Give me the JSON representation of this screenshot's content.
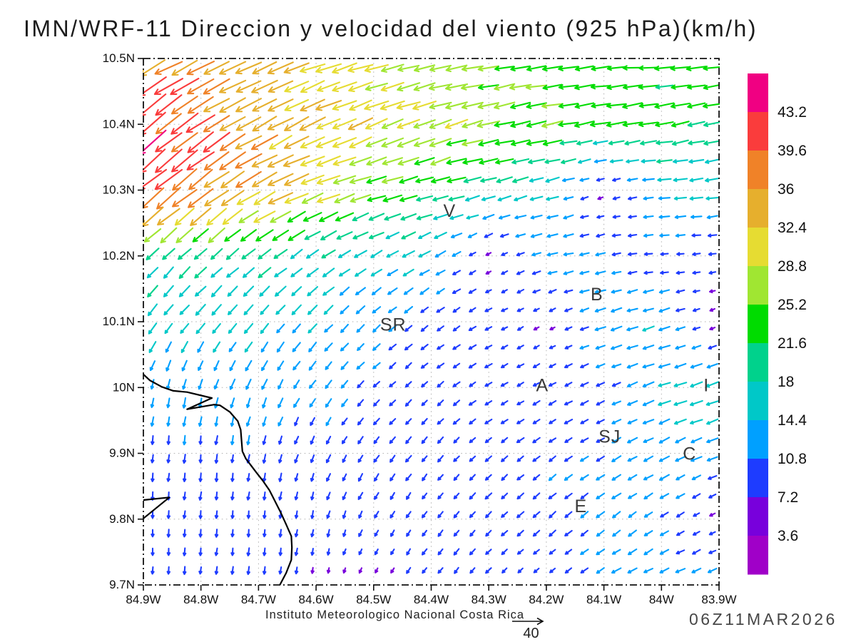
{
  "title": "IMN/WRF-11 Direccion y velocidad del viento (925 hPa)(km/h)",
  "footer": {
    "institute": "Instituto Meteorologico Nacional Costa Rica",
    "timestamp": "06Z11MAR2026",
    "reference_arrow": {
      "value": 40,
      "label": "40"
    }
  },
  "axes": {
    "x": {
      "labels": [
        "84.9W",
        "84.8W",
        "84.7W",
        "84.6W",
        "84.5W",
        "84.4W",
        "84.3W",
        "84.2W",
        "84.1W",
        "84W",
        "83.9W"
      ],
      "lon_min": -84.9,
      "lon_max": -83.9
    },
    "y": {
      "labels": [
        "10.5N",
        "10.4N",
        "10.3N",
        "10.2N",
        "10.1N",
        "10N",
        "9.9N",
        "9.8N",
        "9.7N"
      ],
      "lat_min": 9.7,
      "lat_max": 10.5
    }
  },
  "colorbar": {
    "labels_top_to_bottom": [
      "43.2",
      "39.6",
      "36",
      "32.4",
      "28.8",
      "25.2",
      "21.6",
      "18",
      "14.4",
      "10.8",
      "7.2",
      "3.6"
    ],
    "levels_ascending": [
      3.6,
      7.2,
      10.8,
      14.4,
      18,
      21.6,
      25.2,
      28.8,
      32.4,
      36,
      39.6,
      43.2
    ],
    "colors_bottom_to_top": [
      "#A000C8",
      "#7800DC",
      "#1E3CFF",
      "#00A0FF",
      "#00C8C8",
      "#00D28C",
      "#00DC00",
      "#A0E632",
      "#E6DC32",
      "#E6AF2D",
      "#F08228",
      "#FA3C3C",
      "#F00082"
    ]
  },
  "chart_data": {
    "type": "vector_field",
    "title": "IMN/WRF-11 Direccion y velocidad del viento (925 hPa)(km/h)",
    "units": "km/h",
    "pressure_level": "925 hPa",
    "model": "IMN/WRF-11",
    "reference_speed": 40,
    "lon": [
      -84.9,
      -84.8,
      -84.7,
      -84.6,
      -84.5,
      -84.4,
      -84.3,
      -84.2,
      -84.1,
      -84.0,
      -83.9
    ],
    "lat": [
      10.5,
      10.4,
      10.3,
      10.2,
      10.1,
      10.0,
      9.9,
      9.8,
      9.7
    ],
    "u": [
      [
        -34,
        -33,
        -31,
        -29,
        -28,
        -26,
        -25,
        -24,
        -23,
        -23,
        -23
      ],
      [
        -33,
        -32,
        -31,
        -30,
        -28,
        -27,
        -26,
        -25,
        -23,
        -22,
        -21
      ],
      [
        -32,
        -32,
        -30,
        -28,
        -24,
        -21,
        -18,
        -15,
        -5,
        -15,
        -16
      ],
      [
        -14,
        -14,
        -15,
        -15,
        -13,
        -13,
        -5,
        -12,
        -11,
        -9,
        -8
      ],
      [
        -10,
        -10,
        -10,
        -10,
        -9,
        -8,
        -8,
        -5,
        -13,
        -14,
        -4
      ],
      [
        -2,
        -3,
        -5,
        -7,
        -7,
        -7,
        -8,
        -8,
        -9,
        -14,
        -16
      ],
      [
        -1,
        -1,
        -2,
        -4,
        -6,
        -6,
        -7,
        -8,
        -10,
        -12,
        -13
      ],
      [
        0,
        -1,
        -1,
        -2,
        -4,
        -5,
        -7,
        -8,
        -9,
        -10,
        -5
      ],
      [
        0,
        -1,
        -1,
        -1,
        -3,
        -5,
        -6,
        -5,
        -10,
        -11,
        -11
      ]
    ],
    "v": [
      [
        -17,
        -15,
        -13,
        -10,
        -8,
        -6,
        -4,
        -3,
        -2,
        -1,
        -2
      ],
      [
        -28,
        -22,
        -17,
        -14,
        -11,
        -9,
        -6,
        -5,
        -4,
        -4,
        -5
      ],
      [
        -27,
        -24,
        -16,
        -11,
        -7,
        -6,
        -5,
        -4,
        -2,
        -1,
        -2
      ],
      [
        -14,
        -13,
        -12,
        -10,
        -8,
        -7,
        -3,
        -3,
        -2,
        -1,
        -1
      ],
      [
        -13,
        -12,
        -11,
        -10,
        -8,
        -6,
        -4,
        -3,
        -4,
        -4,
        -2
      ],
      [
        -12,
        -12,
        -12,
        -10,
        -7,
        -6,
        -5,
        -4,
        -4,
        -5,
        -5
      ],
      [
        -10,
        -10,
        -10,
        -9,
        -8,
        -7,
        -6,
        -6,
        -6,
        -6,
        -5
      ],
      [
        -9,
        -9,
        -9,
        -9,
        -8,
        -7,
        -7,
        -7,
        -7,
        -6,
        -3
      ],
      [
        -9,
        -9,
        -9,
        -6,
        -5,
        -7,
        -6,
        -4,
        -6,
        -5,
        -4
      ]
    ]
  },
  "map": {
    "coastline": [
      [
        -84.9,
        10.02
      ],
      [
        -84.889,
        10.011
      ],
      [
        -84.868,
        10.001
      ],
      [
        -84.848,
        9.995
      ],
      [
        -84.824,
        9.993
      ],
      [
        -84.781,
        9.984
      ],
      [
        -84.824,
        9.967
      ],
      [
        -84.777,
        9.974
      ],
      [
        -84.767,
        9.973
      ],
      [
        -84.75,
        9.963
      ],
      [
        -84.736,
        9.949
      ],
      [
        -84.731,
        9.936
      ],
      [
        -84.728,
        9.903
      ],
      [
        -84.722,
        9.892
      ],
      [
        -84.703,
        9.87
      ],
      [
        -84.693,
        9.859
      ],
      [
        -84.681,
        9.844
      ],
      [
        -84.662,
        9.811
      ],
      [
        -84.653,
        9.794
      ],
      [
        -84.643,
        9.774
      ],
      [
        -84.642,
        9.757
      ],
      [
        -84.643,
        9.738
      ],
      [
        -84.652,
        9.718
      ],
      [
        -84.663,
        9.7
      ]
    ],
    "peninsula": [
      [
        -84.9,
        9.829
      ],
      [
        -84.855,
        9.833
      ],
      [
        -84.9,
        9.801
      ]
    ],
    "stations": [
      {
        "label": "V",
        "lon": -84.368,
        "lat": 10.268
      },
      {
        "label": "SR",
        "lon": -84.466,
        "lat": 10.095
      },
      {
        "label": "B",
        "lon": -84.112,
        "lat": 10.141
      },
      {
        "label": "A",
        "lon": -84.207,
        "lat": 10.003
      },
      {
        "label": "I",
        "lon": -83.922,
        "lat": 10.003
      },
      {
        "label": "SJ",
        "lon": -84.09,
        "lat": 9.925
      },
      {
        "label": "C",
        "lon": -83.951,
        "lat": 9.899
      },
      {
        "label": "E",
        "lon": -84.14,
        "lat": 9.819
      }
    ]
  }
}
